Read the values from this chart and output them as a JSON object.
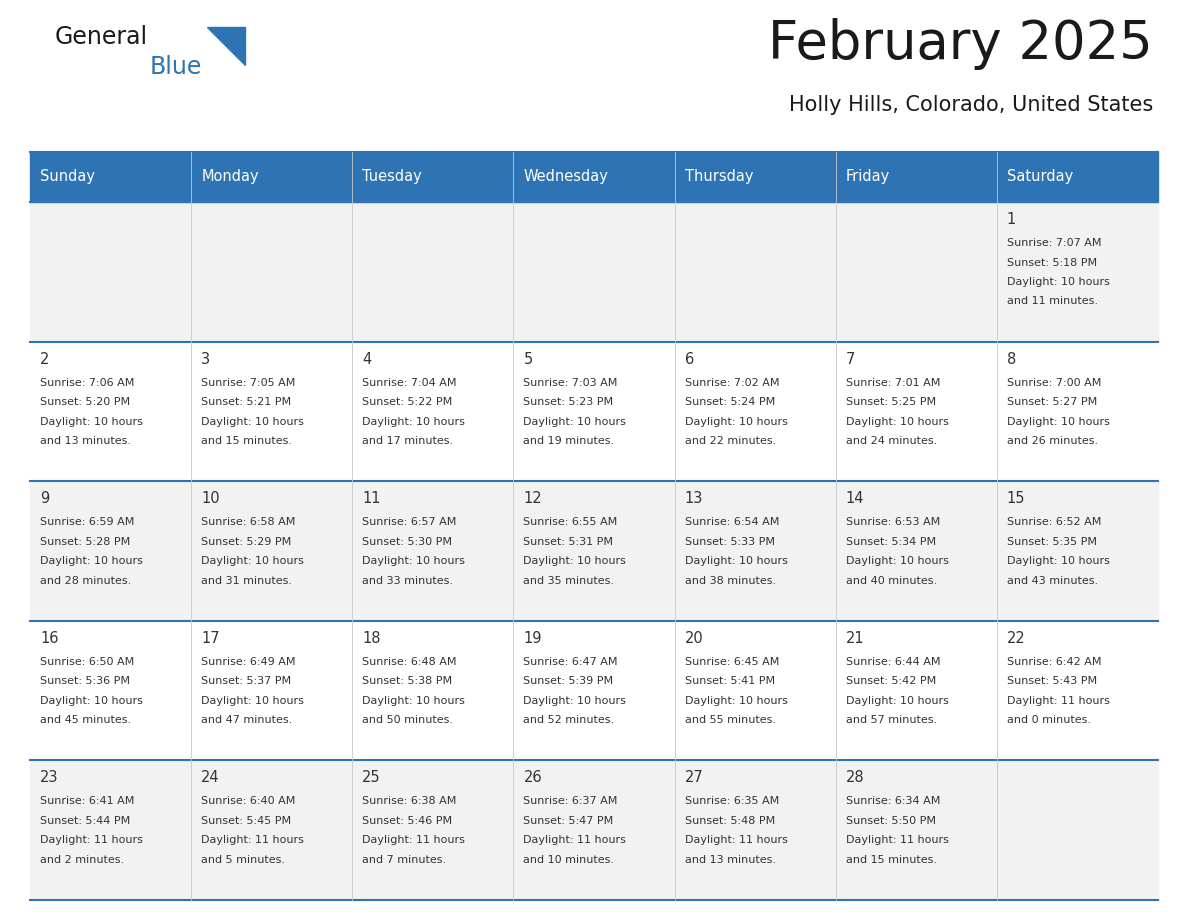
{
  "title": "February 2025",
  "subtitle": "Holly Hills, Colorado, United States",
  "header_bg_color": "#2E74B5",
  "header_text_color": "#FFFFFF",
  "row_bg_even": "#F2F2F2",
  "row_bg_odd": "#FFFFFF",
  "border_color": "#2E74B5",
  "text_color": "#333333",
  "days_of_week": [
    "Sunday",
    "Monday",
    "Tuesday",
    "Wednesday",
    "Thursday",
    "Friday",
    "Saturday"
  ],
  "calendar_data": [
    [
      null,
      null,
      null,
      null,
      null,
      null,
      {
        "day": "1",
        "sunrise": "7:07 AM",
        "sunset": "5:18 PM",
        "daylight": "10 hours and 11 minutes."
      }
    ],
    [
      {
        "day": "2",
        "sunrise": "7:06 AM",
        "sunset": "5:20 PM",
        "daylight": "10 hours and 13 minutes."
      },
      {
        "day": "3",
        "sunrise": "7:05 AM",
        "sunset": "5:21 PM",
        "daylight": "10 hours and 15 minutes."
      },
      {
        "day": "4",
        "sunrise": "7:04 AM",
        "sunset": "5:22 PM",
        "daylight": "10 hours and 17 minutes."
      },
      {
        "day": "5",
        "sunrise": "7:03 AM",
        "sunset": "5:23 PM",
        "daylight": "10 hours and 19 minutes."
      },
      {
        "day": "6",
        "sunrise": "7:02 AM",
        "sunset": "5:24 PM",
        "daylight": "10 hours and 22 minutes."
      },
      {
        "day": "7",
        "sunrise": "7:01 AM",
        "sunset": "5:25 PM",
        "daylight": "10 hours and 24 minutes."
      },
      {
        "day": "8",
        "sunrise": "7:00 AM",
        "sunset": "5:27 PM",
        "daylight": "10 hours and 26 minutes."
      }
    ],
    [
      {
        "day": "9",
        "sunrise": "6:59 AM",
        "sunset": "5:28 PM",
        "daylight": "10 hours and 28 minutes."
      },
      {
        "day": "10",
        "sunrise": "6:58 AM",
        "sunset": "5:29 PM",
        "daylight": "10 hours and 31 minutes."
      },
      {
        "day": "11",
        "sunrise": "6:57 AM",
        "sunset": "5:30 PM",
        "daylight": "10 hours and 33 minutes."
      },
      {
        "day": "12",
        "sunrise": "6:55 AM",
        "sunset": "5:31 PM",
        "daylight": "10 hours and 35 minutes."
      },
      {
        "day": "13",
        "sunrise": "6:54 AM",
        "sunset": "5:33 PM",
        "daylight": "10 hours and 38 minutes."
      },
      {
        "day": "14",
        "sunrise": "6:53 AM",
        "sunset": "5:34 PM",
        "daylight": "10 hours and 40 minutes."
      },
      {
        "day": "15",
        "sunrise": "6:52 AM",
        "sunset": "5:35 PM",
        "daylight": "10 hours and 43 minutes."
      }
    ],
    [
      {
        "day": "16",
        "sunrise": "6:50 AM",
        "sunset": "5:36 PM",
        "daylight": "10 hours and 45 minutes."
      },
      {
        "day": "17",
        "sunrise": "6:49 AM",
        "sunset": "5:37 PM",
        "daylight": "10 hours and 47 minutes."
      },
      {
        "day": "18",
        "sunrise": "6:48 AM",
        "sunset": "5:38 PM",
        "daylight": "10 hours and 50 minutes."
      },
      {
        "day": "19",
        "sunrise": "6:47 AM",
        "sunset": "5:39 PM",
        "daylight": "10 hours and 52 minutes."
      },
      {
        "day": "20",
        "sunrise": "6:45 AM",
        "sunset": "5:41 PM",
        "daylight": "10 hours and 55 minutes."
      },
      {
        "day": "21",
        "sunrise": "6:44 AM",
        "sunset": "5:42 PM",
        "daylight": "10 hours and 57 minutes."
      },
      {
        "day": "22",
        "sunrise": "6:42 AM",
        "sunset": "5:43 PM",
        "daylight": "11 hours and 0 minutes."
      }
    ],
    [
      {
        "day": "23",
        "sunrise": "6:41 AM",
        "sunset": "5:44 PM",
        "daylight": "11 hours and 2 minutes."
      },
      {
        "day": "24",
        "sunrise": "6:40 AM",
        "sunset": "5:45 PM",
        "daylight": "11 hours and 5 minutes."
      },
      {
        "day": "25",
        "sunrise": "6:38 AM",
        "sunset": "5:46 PM",
        "daylight": "11 hours and 7 minutes."
      },
      {
        "day": "26",
        "sunrise": "6:37 AM",
        "sunset": "5:47 PM",
        "daylight": "11 hours and 10 minutes."
      },
      {
        "day": "27",
        "sunrise": "6:35 AM",
        "sunset": "5:48 PM",
        "daylight": "11 hours and 13 minutes."
      },
      {
        "day": "28",
        "sunrise": "6:34 AM",
        "sunset": "5:50 PM",
        "daylight": "11 hours and 15 minutes."
      },
      null
    ]
  ]
}
